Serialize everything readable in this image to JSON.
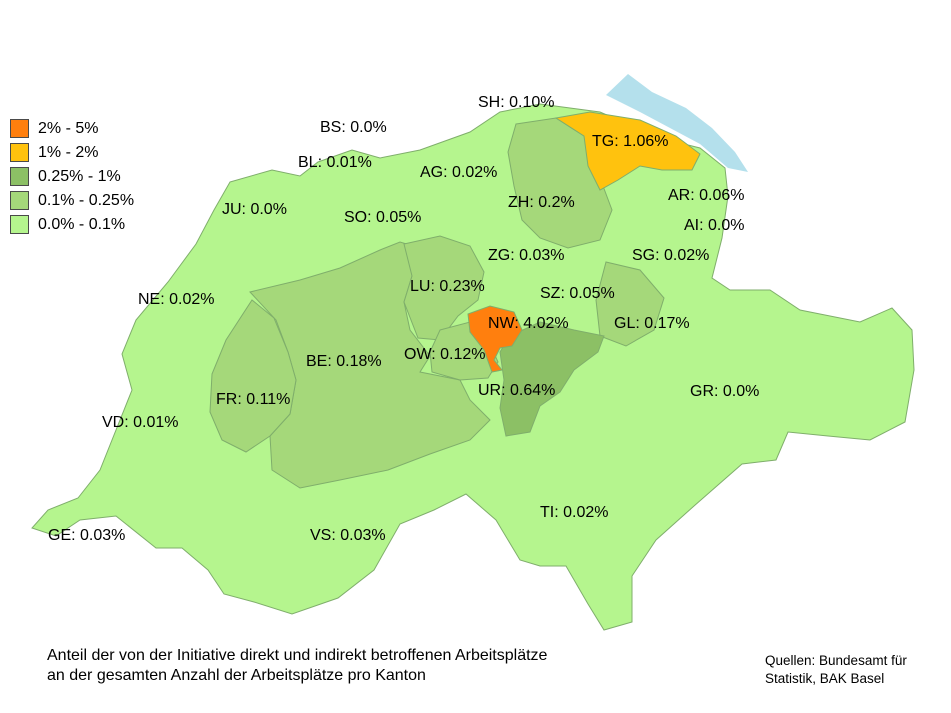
{
  "legend": [
    {
      "label": "2% - 5%",
      "color": "#ff7f0e"
    },
    {
      "label": "1% - 2%",
      "color": "#ffc20e"
    },
    {
      "label": "0.25% - 1%",
      "color": "#8cc065"
    },
    {
      "label": "0.1% - 0.25%",
      "color": "#a5d87a"
    },
    {
      "label": "0.0% - 0.1%",
      "color": "#b5f58e"
    }
  ],
  "cantons": [
    {
      "code": "SH",
      "label": "SH: 0.10%"
    },
    {
      "code": "BS",
      "label": "BS: 0.0%"
    },
    {
      "code": "TG",
      "label": "TG: 1.06%"
    },
    {
      "code": "BL",
      "label": "BL: 0.01%"
    },
    {
      "code": "AG",
      "label": "AG: 0.02%"
    },
    {
      "code": "AR",
      "label": "AR: 0.06%"
    },
    {
      "code": "JU",
      "label": "JU: 0.0%"
    },
    {
      "code": "ZH",
      "label": "ZH: 0.2%"
    },
    {
      "code": "AI",
      "label": "AI: 0.0%"
    },
    {
      "code": "SO",
      "label": "SO: 0.05%"
    },
    {
      "code": "ZG",
      "label": "ZG: 0.03%"
    },
    {
      "code": "SG",
      "label": "SG: 0.02%"
    },
    {
      "code": "LU",
      "label": "LU: 0.23%"
    },
    {
      "code": "SZ",
      "label": "SZ: 0.05%"
    },
    {
      "code": "NE",
      "label": "NE: 0.02%"
    },
    {
      "code": "NW",
      "label": "NW: 4.02%"
    },
    {
      "code": "GL",
      "label": "GL: 0.17%"
    },
    {
      "code": "BE",
      "label": "BE: 0.18%"
    },
    {
      "code": "OW",
      "label": "OW: 0.12%"
    },
    {
      "code": "UR",
      "label": "UR: 0.64%"
    },
    {
      "code": "FR",
      "label": "FR: 0.11%"
    },
    {
      "code": "GR",
      "label": "GR: 0.0%"
    },
    {
      "code": "VD",
      "label": "VD: 0.01%"
    },
    {
      "code": "TI",
      "label": "TI: 0.02%"
    },
    {
      "code": "GE",
      "label": "GE: 0.03%"
    },
    {
      "code": "VS",
      "label": "VS: 0.03%"
    }
  ],
  "caption": {
    "line1": "Anteil der von der Initiative direkt und indirekt betroffenen Arbeitsplätze",
    "line2": "an der gesamten Anzahl der Arbeitsplätze pro Kanton"
  },
  "source": {
    "line1": "Quellen: Bundesamt für",
    "line2": "Statistik, BAK Basel"
  }
}
